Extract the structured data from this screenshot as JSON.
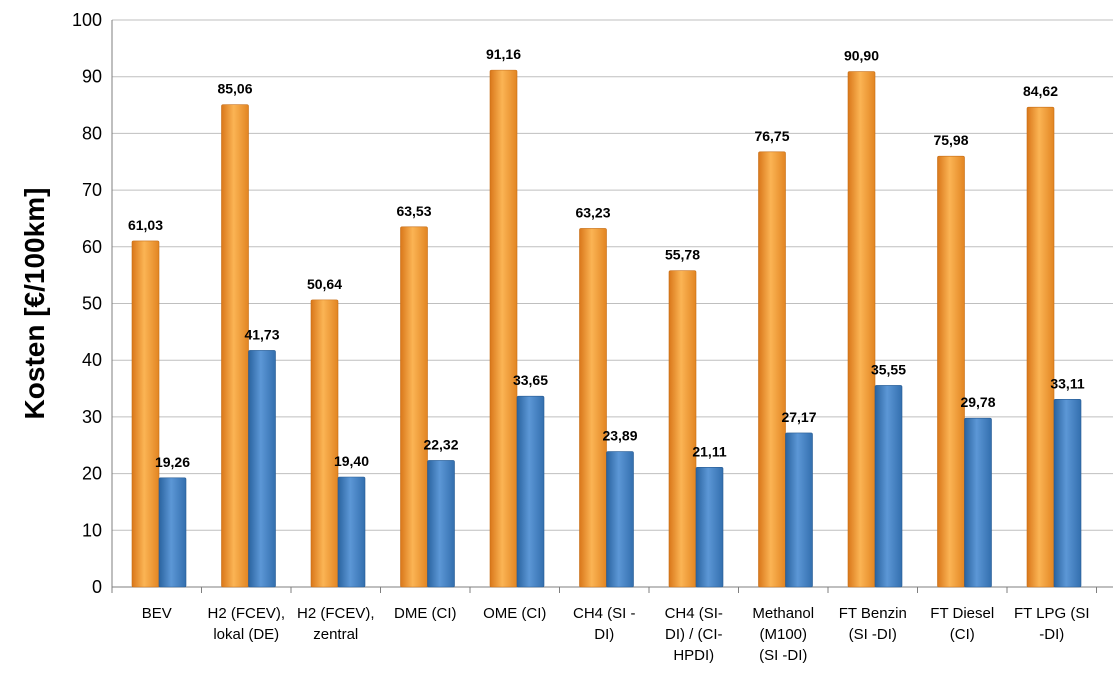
{
  "chart_data": {
    "type": "bar",
    "title": "",
    "xlabel": "",
    "ylabel": "Kosten [€/100km]",
    "ylim": [
      0,
      100
    ],
    "yticks": [
      0,
      10,
      20,
      30,
      40,
      50,
      60,
      70,
      80,
      90,
      100
    ],
    "grid": true,
    "categories": [
      [
        "BEV"
      ],
      [
        "H2 (FCEV),",
        "lokal (DE)"
      ],
      [
        "H2 (FCEV),",
        "zentral"
      ],
      [
        "DME (CI)"
      ],
      [
        "OME (CI)"
      ],
      [
        "CH4 (SI -",
        "DI)"
      ],
      [
        "CH4 (SI-",
        "DI) / (CI-",
        "HPDI)"
      ],
      [
        "Methanol",
        "(M100)",
        "(SI -DI)"
      ],
      [
        "FT Benzin",
        "(SI -DI)"
      ],
      [
        "FT Diesel",
        "(CI)"
      ],
      [
        "FT LPG (SI",
        "-DI)"
      ]
    ],
    "series": [
      {
        "color": "#F59A2E",
        "values": [
          61.03,
          85.06,
          50.64,
          63.53,
          91.16,
          63.23,
          55.78,
          76.75,
          90.9,
          75.98,
          84.62
        ],
        "labels": [
          "61,03",
          "85,06",
          "50,64",
          "63,53",
          "91,16",
          "63,23",
          "55,78",
          "76,75",
          "90,90",
          "75,98",
          "84,62"
        ]
      },
      {
        "color": "#3B7BC0",
        "values": [
          19.26,
          41.73,
          19.4,
          22.32,
          33.65,
          23.89,
          21.11,
          27.17,
          35.55,
          29.78,
          33.11
        ],
        "labels": [
          "19,26",
          "41,73",
          "19,40",
          "22,32",
          "33,65",
          "23,89",
          "21,11",
          "27,17",
          "35,55",
          "29,78",
          "33,11"
        ]
      }
    ]
  }
}
